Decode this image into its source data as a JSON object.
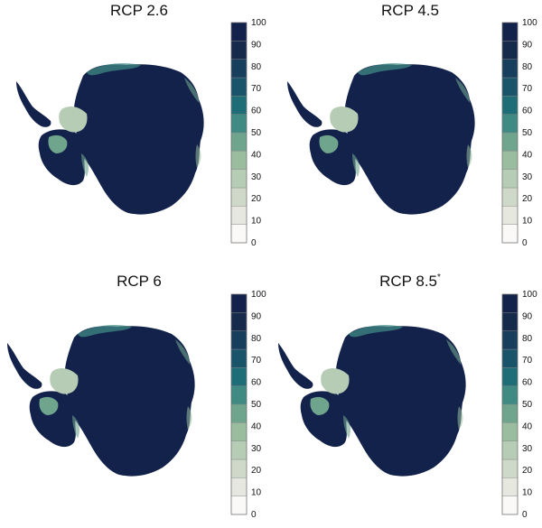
{
  "colorbar": {
    "ticks": [
      "100",
      "90",
      "80",
      "70",
      "60",
      "50",
      "40",
      "30",
      "20",
      "10",
      "0"
    ],
    "colors": [
      "#fbf9f7",
      "#e6e8df",
      "#cfd9c9",
      "#b6ccb4",
      "#99bd9e",
      "#6fa48d",
      "#3f8a83",
      "#1f6e77",
      "#1a546b",
      "#183e5d",
      "#162a4c",
      "#13224a"
    ]
  },
  "panels": [
    {
      "title": "RCP 2.6",
      "sup": ""
    },
    {
      "title": "RCP 4.5",
      "sup": ""
    },
    {
      "title": "RCP 6",
      "sup": ""
    },
    {
      "title": "RCP 8.5",
      "sup": "*"
    }
  ]
}
